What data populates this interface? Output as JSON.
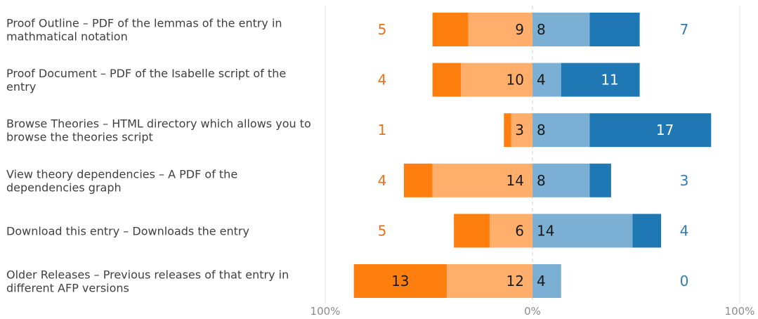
{
  "chart_data": {
    "type": "bar",
    "orientation": "horizontal-diverging",
    "title": "",
    "categories": [
      [
        "Proof Outline – PDF of the lemmas of the entry in",
        "mathmatical notation"
      ],
      [
        "Proof Document – PDF of the Isabelle script of the",
        "entry"
      ],
      [
        "Browse Theories – HTML directory which allows you to",
        "browse the theories script"
      ],
      [
        "View theory dependencies – A PDF of the",
        "dependencies graph"
      ],
      [
        "Download this entry – Downloads the entry"
      ],
      [
        "Older Releases – Previous releases of that entry in",
        "different AFP versions"
      ]
    ],
    "series": [
      {
        "side": "negative",
        "shade": "strong",
        "color": "#FF7F0E",
        "values": [
          5,
          4,
          1,
          4,
          5,
          13
        ]
      },
      {
        "side": "negative",
        "shade": "light",
        "color": "#FFAE6B",
        "values": [
          9,
          10,
          3,
          14,
          6,
          12
        ]
      },
      {
        "side": "positive",
        "shade": "light",
        "color": "#7BAFD4",
        "values": [
          8,
          4,
          8,
          8,
          14,
          4
        ]
      },
      {
        "side": "positive",
        "shade": "strong",
        "color": "#1F77B4",
        "values": [
          7,
          11,
          17,
          3,
          4,
          0
        ]
      }
    ],
    "x_ticks": [
      "100%",
      "0%",
      "100%"
    ],
    "xlim": [
      -29,
      29
    ],
    "grid": false,
    "legend": "none",
    "negative_total_color": "#E8731A",
    "positive_total_color": "#2F7DB8"
  }
}
